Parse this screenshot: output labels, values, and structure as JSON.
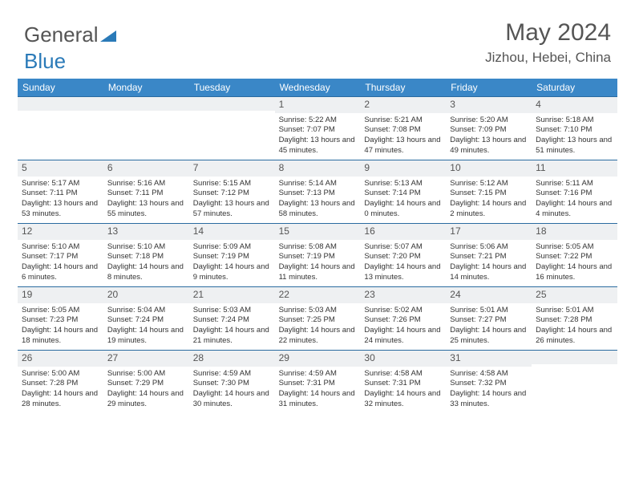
{
  "logo": {
    "text1": "General",
    "text2": "Blue"
  },
  "header": {
    "month": "May 2024",
    "location": "Jizhou, Hebei, China"
  },
  "colors": {
    "header_bg": "#3a87c7",
    "border": "#2a6ba0",
    "daynum_bg": "#eef0f2",
    "text": "#333333",
    "logo_gray": "#555555",
    "logo_blue": "#2a7ab8"
  },
  "weekdays": [
    "Sunday",
    "Monday",
    "Tuesday",
    "Wednesday",
    "Thursday",
    "Friday",
    "Saturday"
  ],
  "weeks": [
    [
      {
        "n": "",
        "sr": "",
        "ss": "",
        "dl": ""
      },
      {
        "n": "",
        "sr": "",
        "ss": "",
        "dl": ""
      },
      {
        "n": "",
        "sr": "",
        "ss": "",
        "dl": ""
      },
      {
        "n": "1",
        "sr": "Sunrise: 5:22 AM",
        "ss": "Sunset: 7:07 PM",
        "dl": "Daylight: 13 hours and 45 minutes."
      },
      {
        "n": "2",
        "sr": "Sunrise: 5:21 AM",
        "ss": "Sunset: 7:08 PM",
        "dl": "Daylight: 13 hours and 47 minutes."
      },
      {
        "n": "3",
        "sr": "Sunrise: 5:20 AM",
        "ss": "Sunset: 7:09 PM",
        "dl": "Daylight: 13 hours and 49 minutes."
      },
      {
        "n": "4",
        "sr": "Sunrise: 5:18 AM",
        "ss": "Sunset: 7:10 PM",
        "dl": "Daylight: 13 hours and 51 minutes."
      }
    ],
    [
      {
        "n": "5",
        "sr": "Sunrise: 5:17 AM",
        "ss": "Sunset: 7:11 PM",
        "dl": "Daylight: 13 hours and 53 minutes."
      },
      {
        "n": "6",
        "sr": "Sunrise: 5:16 AM",
        "ss": "Sunset: 7:11 PM",
        "dl": "Daylight: 13 hours and 55 minutes."
      },
      {
        "n": "7",
        "sr": "Sunrise: 5:15 AM",
        "ss": "Sunset: 7:12 PM",
        "dl": "Daylight: 13 hours and 57 minutes."
      },
      {
        "n": "8",
        "sr": "Sunrise: 5:14 AM",
        "ss": "Sunset: 7:13 PM",
        "dl": "Daylight: 13 hours and 58 minutes."
      },
      {
        "n": "9",
        "sr": "Sunrise: 5:13 AM",
        "ss": "Sunset: 7:14 PM",
        "dl": "Daylight: 14 hours and 0 minutes."
      },
      {
        "n": "10",
        "sr": "Sunrise: 5:12 AM",
        "ss": "Sunset: 7:15 PM",
        "dl": "Daylight: 14 hours and 2 minutes."
      },
      {
        "n": "11",
        "sr": "Sunrise: 5:11 AM",
        "ss": "Sunset: 7:16 PM",
        "dl": "Daylight: 14 hours and 4 minutes."
      }
    ],
    [
      {
        "n": "12",
        "sr": "Sunrise: 5:10 AM",
        "ss": "Sunset: 7:17 PM",
        "dl": "Daylight: 14 hours and 6 minutes."
      },
      {
        "n": "13",
        "sr": "Sunrise: 5:10 AM",
        "ss": "Sunset: 7:18 PM",
        "dl": "Daylight: 14 hours and 8 minutes."
      },
      {
        "n": "14",
        "sr": "Sunrise: 5:09 AM",
        "ss": "Sunset: 7:19 PM",
        "dl": "Daylight: 14 hours and 9 minutes."
      },
      {
        "n": "15",
        "sr": "Sunrise: 5:08 AM",
        "ss": "Sunset: 7:19 PM",
        "dl": "Daylight: 14 hours and 11 minutes."
      },
      {
        "n": "16",
        "sr": "Sunrise: 5:07 AM",
        "ss": "Sunset: 7:20 PM",
        "dl": "Daylight: 14 hours and 13 minutes."
      },
      {
        "n": "17",
        "sr": "Sunrise: 5:06 AM",
        "ss": "Sunset: 7:21 PM",
        "dl": "Daylight: 14 hours and 14 minutes."
      },
      {
        "n": "18",
        "sr": "Sunrise: 5:05 AM",
        "ss": "Sunset: 7:22 PM",
        "dl": "Daylight: 14 hours and 16 minutes."
      }
    ],
    [
      {
        "n": "19",
        "sr": "Sunrise: 5:05 AM",
        "ss": "Sunset: 7:23 PM",
        "dl": "Daylight: 14 hours and 18 minutes."
      },
      {
        "n": "20",
        "sr": "Sunrise: 5:04 AM",
        "ss": "Sunset: 7:24 PM",
        "dl": "Daylight: 14 hours and 19 minutes."
      },
      {
        "n": "21",
        "sr": "Sunrise: 5:03 AM",
        "ss": "Sunset: 7:24 PM",
        "dl": "Daylight: 14 hours and 21 minutes."
      },
      {
        "n": "22",
        "sr": "Sunrise: 5:03 AM",
        "ss": "Sunset: 7:25 PM",
        "dl": "Daylight: 14 hours and 22 minutes."
      },
      {
        "n": "23",
        "sr": "Sunrise: 5:02 AM",
        "ss": "Sunset: 7:26 PM",
        "dl": "Daylight: 14 hours and 24 minutes."
      },
      {
        "n": "24",
        "sr": "Sunrise: 5:01 AM",
        "ss": "Sunset: 7:27 PM",
        "dl": "Daylight: 14 hours and 25 minutes."
      },
      {
        "n": "25",
        "sr": "Sunrise: 5:01 AM",
        "ss": "Sunset: 7:28 PM",
        "dl": "Daylight: 14 hours and 26 minutes."
      }
    ],
    [
      {
        "n": "26",
        "sr": "Sunrise: 5:00 AM",
        "ss": "Sunset: 7:28 PM",
        "dl": "Daylight: 14 hours and 28 minutes."
      },
      {
        "n": "27",
        "sr": "Sunrise: 5:00 AM",
        "ss": "Sunset: 7:29 PM",
        "dl": "Daylight: 14 hours and 29 minutes."
      },
      {
        "n": "28",
        "sr": "Sunrise: 4:59 AM",
        "ss": "Sunset: 7:30 PM",
        "dl": "Daylight: 14 hours and 30 minutes."
      },
      {
        "n": "29",
        "sr": "Sunrise: 4:59 AM",
        "ss": "Sunset: 7:31 PM",
        "dl": "Daylight: 14 hours and 31 minutes."
      },
      {
        "n": "30",
        "sr": "Sunrise: 4:58 AM",
        "ss": "Sunset: 7:31 PM",
        "dl": "Daylight: 14 hours and 32 minutes."
      },
      {
        "n": "31",
        "sr": "Sunrise: 4:58 AM",
        "ss": "Sunset: 7:32 PM",
        "dl": "Daylight: 14 hours and 33 minutes."
      },
      {
        "n": "",
        "sr": "",
        "ss": "",
        "dl": ""
      }
    ]
  ]
}
